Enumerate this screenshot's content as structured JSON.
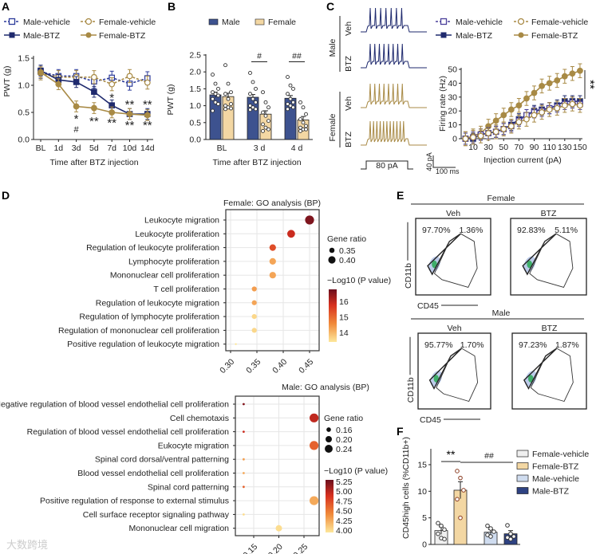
{
  "colors": {
    "male": "#1f2a6e",
    "female": "#a88a45",
    "male_bar": "#3d528f",
    "female_bar": "#f3d7a3",
    "highlight": "#c0393b"
  },
  "watermark": "大数跨境",
  "chart_data": [
    {
      "id": "A",
      "type": "line",
      "panel_label": "A",
      "xlabel": "Time after BTZ injection",
      "ylabel": "PWT (g)",
      "categories": [
        "BL",
        "1d",
        "3d",
        "5d",
        "7d",
        "10d",
        "14d"
      ],
      "ylim": [
        0,
        1.5
      ],
      "yticks": [
        "0.0",
        "0.5",
        "1.0",
        "1.5"
      ],
      "legend": [
        "Male-vehicle",
        "Female-vehicle",
        "Male-BTZ",
        "Female-BTZ"
      ],
      "series": [
        {
          "name": "Male-vehicle",
          "values": [
            1.25,
            1.17,
            1.17,
            1.07,
            1.14,
            1.03,
            1.13
          ],
          "err": 0.12,
          "dashed": true,
          "color": "#2b3a9a"
        },
        {
          "name": "Female-vehicle",
          "values": [
            1.22,
            1.15,
            1.15,
            1.15,
            1.02,
            1.17,
            1.05
          ],
          "err": 0.12,
          "dashed": true,
          "color": "#a88a45"
        },
        {
          "name": "Male-BTZ",
          "values": [
            1.27,
            1.1,
            1.06,
            0.88,
            0.63,
            0.47,
            0.47
          ],
          "err": 0.1,
          "dashed": false,
          "color": "#1f2a6e"
        },
        {
          "name": "Female-BTZ",
          "values": [
            1.24,
            1.02,
            0.61,
            0.58,
            0.5,
            0.47,
            0.45
          ],
          "err": 0.1,
          "dashed": false,
          "color": "#a88a45"
        }
      ],
      "annotations": [
        {
          "cat": 2,
          "y": 0.4,
          "text": "*"
        },
        {
          "cat": 2,
          "y": 0.22,
          "text": "#"
        },
        {
          "cat": 3,
          "y": 0.35,
          "text": "**"
        },
        {
          "cat": 4,
          "y": 0.32,
          "text": "**"
        },
        {
          "cat": 4,
          "y": 0.79,
          "text": "*"
        },
        {
          "cat": 5,
          "y": 0.66,
          "text": "**"
        },
        {
          "cat": 5,
          "y": 0.28,
          "text": "**"
        },
        {
          "cat": 6,
          "y": 0.66,
          "text": "**"
        },
        {
          "cat": 6,
          "y": 0.28,
          "text": "**"
        }
      ]
    },
    {
      "id": "B",
      "type": "bar",
      "panel_label": "B",
      "xlabel": "Time after BTZ injection",
      "ylabel": "PWT (g)",
      "categories": [
        "BL",
        "3 d",
        "4 d"
      ],
      "ylim": [
        0,
        2.5
      ],
      "yticks": [
        "0.0",
        "0.5",
        "1.0",
        "1.5",
        "2.0",
        "2.5"
      ],
      "legend": [
        "Male",
        "Female"
      ],
      "series": [
        {
          "name": "Male",
          "values": [
            1.32,
            1.25,
            1.22
          ],
          "err": 0.08,
          "points": [
            [
              1.92,
              1.65,
              1.5,
              1.4,
              1.35,
              1.3,
              1.2,
              1.1,
              1.05,
              0.85
            ],
            [
              1.97,
              1.7,
              1.5,
              1.35,
              1.2,
              1.1,
              1.0,
              0.95,
              0.9,
              0.88
            ],
            [
              1.85,
              1.6,
              1.5,
              1.35,
              1.2,
              1.1,
              1.05,
              1.0,
              0.95,
              0.9
            ]
          ]
        },
        {
          "name": "Female",
          "values": [
            1.27,
            0.75,
            0.58
          ],
          "err": 0.1,
          "points": [
            [
              2.2,
              1.65,
              1.4,
              1.35,
              1.2,
              1.05,
              1.0,
              0.95,
              0.92,
              0.9
            ],
            [
              1.4,
              1.1,
              0.95,
              0.8,
              0.7,
              0.55,
              0.45,
              0.35,
              0.3,
              0.25
            ],
            [
              1.1,
              0.95,
              0.75,
              0.6,
              0.5,
              0.4,
              0.35,
              0.3,
              0.3,
              0.25
            ]
          ]
        }
      ],
      "significance": [
        {
          "cat": 1,
          "y": 2.3,
          "text": "#"
        },
        {
          "cat": 2,
          "y": 2.3,
          "text": "##"
        }
      ]
    },
    {
      "id": "C",
      "type": "line",
      "panel_label": "C",
      "xlabel": "Injection current (pA)",
      "ylabel": "Firing rate (Hz)",
      "x": [
        0,
        10,
        20,
        30,
        40,
        50,
        60,
        70,
        80,
        90,
        100,
        110,
        120,
        130,
        140,
        150
      ],
      "xticks": [
        "10",
        "30",
        "50",
        "70",
        "90",
        "110",
        "130",
        "150"
      ],
      "ylim": [
        0,
        50
      ],
      "yticks": [
        "0",
        "10",
        "20",
        "30",
        "40",
        "50"
      ],
      "legend": [
        "Male-vehicle",
        "Female-vehicle",
        "Male-BTZ",
        "Female-BTZ"
      ],
      "series": [
        {
          "name": "Female-BTZ",
          "values": [
            0,
            2,
            4,
            9,
            13,
            17,
            21,
            24,
            29,
            33,
            38,
            40,
            42,
            45,
            47,
            49
          ],
          "err": 5,
          "dashed": false,
          "color": "#a88a45"
        },
        {
          "name": "Male-BTZ",
          "values": [
            0,
            0,
            3,
            4,
            5,
            7,
            10,
            14,
            17,
            20,
            21,
            22,
            24,
            27,
            27,
            27
          ],
          "err": 4,
          "dashed": false,
          "color": "#1f2a6e"
        },
        {
          "name": "Male-vehicle",
          "values": [
            0,
            1,
            3,
            4,
            5,
            7,
            9,
            13,
            17,
            19,
            20,
            22,
            23,
            25,
            26,
            25
          ],
          "err": 4,
          "dashed": true,
          "color": "#4a3f9a"
        },
        {
          "name": "Female-vehicle",
          "values": [
            0,
            1,
            2,
            4,
            5,
            7,
            9,
            12,
            14,
            17,
            19,
            21,
            22,
            24,
            25,
            24
          ],
          "err": 5,
          "dashed": true,
          "color": "#a88a45"
        }
      ],
      "significance": "**",
      "traces": {
        "groups": [
          "Male",
          "Female"
        ],
        "conditions": [
          "Veh",
          "BTZ",
          "Veh",
          "BTZ"
        ],
        "spike_counts": [
          7,
          8,
          8,
          11
        ],
        "stimulus": "80 pA",
        "scale_y": "40 pA",
        "scale_x": "100 ms"
      }
    },
    {
      "id": "D_female",
      "type": "scatter",
      "panel_label": "D",
      "title": "Female: GO analysis (BP)",
      "xticks": [
        "0.30",
        "0.35",
        "0.40",
        "0.45"
      ],
      "size_legend_title": "Gene ratio",
      "size_legend": [
        "0.35",
        "0.40"
      ],
      "color_legend_title": "−Log10 (P value)",
      "color_ticks": [
        "16",
        "15",
        "14"
      ],
      "color_range": [
        13.4,
        16.8
      ],
      "terms": [
        {
          "label": "Leukocyte migration",
          "ratio": 0.45,
          "logp": 16.6,
          "highlight": false
        },
        {
          "label": "Leukocyte proliferation",
          "ratio": 0.415,
          "logp": 15.8,
          "highlight": false
        },
        {
          "label": "Regulation of leukocyte proliferation",
          "ratio": 0.38,
          "logp": 15.3,
          "highlight": false
        },
        {
          "label": "Lymphocyte proliferation",
          "ratio": 0.38,
          "logp": 14.2,
          "highlight": false
        },
        {
          "label": "Mononuclear cell proliferation",
          "ratio": 0.38,
          "logp": 14.2,
          "highlight": true
        },
        {
          "label": "T cell proliferation",
          "ratio": 0.345,
          "logp": 14.3,
          "highlight": false
        },
        {
          "label": "Regulation of leukocyte migration",
          "ratio": 0.345,
          "logp": 14.2,
          "highlight": false
        },
        {
          "label": "Regulation of lymphocyte proliferation",
          "ratio": 0.345,
          "logp": 13.6,
          "highlight": false
        },
        {
          "label": "Regulation of mononuclear cell proliferation",
          "ratio": 0.345,
          "logp": 13.6,
          "highlight": true
        },
        {
          "label": "Positive regulation of leukocyte migration",
          "ratio": 0.31,
          "logp": 13.4,
          "highlight": false
        }
      ]
    },
    {
      "id": "D_male",
      "type": "scatter",
      "title": "Male: GO analysis (BP)",
      "xticks": [
        "0.15",
        "0.20",
        "0.25"
      ],
      "size_legend_title": "Gene ratio",
      "size_legend": [
        "0.16",
        "0.20",
        "0.24"
      ],
      "color_legend_title": "−Log10 (P value)",
      "color_ticks": [
        "5.25",
        "5.00",
        "4.75",
        "4.50",
        "4.25",
        "4.00"
      ],
      "color_range": [
        3.95,
        5.3
      ],
      "terms": [
        {
          "label": "Negative regulation of blood vessel endothelial cell proliferation",
          "ratio": 0.13,
          "logp": 5.2
        },
        {
          "label": "Cell chemotaxis",
          "ratio": 0.27,
          "logp": 4.95
        },
        {
          "label": "Regulation of blood vessel endothelial cell proliferation",
          "ratio": 0.13,
          "logp": 4.9
        },
        {
          "label": "Eukocyte migration",
          "ratio": 0.27,
          "logp": 4.6
        },
        {
          "label": "Spinal cord dorsal/ventral patterning",
          "ratio": 0.13,
          "logp": 4.3
        },
        {
          "label": "Blood vessel endothelial cell proliferation",
          "ratio": 0.13,
          "logp": 4.25
        },
        {
          "label": "Spinal cord patterning",
          "ratio": 0.13,
          "logp": 4.6
        },
        {
          "label": "Positive regulation of response to external stimulus",
          "ratio": 0.27,
          "logp": 4.25
        },
        {
          "label": "Cell surface receptor signaling pathway",
          "ratio": 0.13,
          "logp": 4.0
        },
        {
          "label": "Mononuclear cell migration",
          "ratio": 0.2,
          "logp": 4.0
        }
      ]
    },
    {
      "id": "E",
      "type": "scatter",
      "panel_label": "E",
      "xlabel": "CD45",
      "ylabel": "CD11b",
      "groups": [
        {
          "name": "Female",
          "plots": [
            {
              "label": "Veh",
              "left": "97.70%",
              "right": "1.36%"
            },
            {
              "label": "BTZ",
              "left": "92.83%",
              "right": "5.11%"
            }
          ]
        },
        {
          "name": "Male",
          "plots": [
            {
              "label": "Veh",
              "left": "95.77%",
              "right": "1.70%"
            },
            {
              "label": "BTZ",
              "left": "97.23%",
              "right": "1.87%"
            }
          ]
        }
      ]
    },
    {
      "id": "F",
      "type": "bar",
      "panel_label": "F",
      "ylabel": "CD45high cells (%CD11b+)",
      "ylim": [
        0,
        17
      ],
      "yticks": [
        "0",
        "5",
        "10",
        "15"
      ],
      "categories": [
        "Female-vehicle",
        "Female-BTZ",
        "Male-vehicle",
        "Male-BTZ"
      ],
      "values": [
        2.6,
        10.2,
        2.3,
        2.0
      ],
      "err": [
        0.7,
        1.6,
        0.5,
        0.6
      ],
      "colors": [
        "#efefef",
        "#f3d7a3",
        "#cfdcef",
        "#2e4282"
      ],
      "points": [
        [
          4.0,
          3.5,
          2.8,
          2.0,
          1.2,
          1.0
        ],
        [
          13.8,
          12.5,
          10.2,
          8.5,
          5.0
        ],
        [
          3.5,
          3.0,
          2.4,
          1.8,
          1.5
        ],
        [
          3.6,
          2.0,
          1.5,
          1.3,
          1.0
        ]
      ],
      "significance": [
        {
          "text": "**"
        },
        {
          "text": "##"
        }
      ]
    }
  ]
}
